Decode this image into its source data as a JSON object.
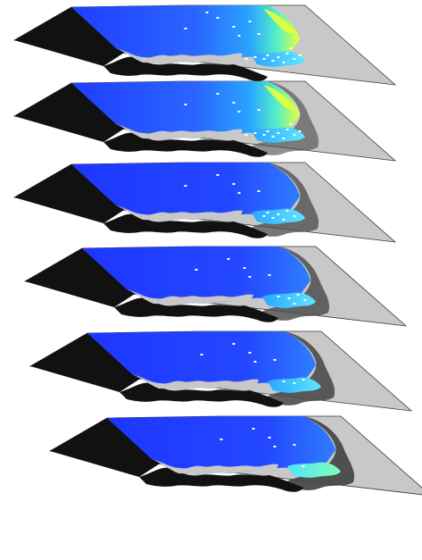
{
  "figure": {
    "description_visible_text": "",
    "layer_count": 6,
    "colors": {
      "land_gray": "#c8c8c8",
      "black_region": "#111111",
      "dark_gray_mask": "#4a4a4a",
      "deep_blue": "#1f3dff",
      "mid_blue": "#2a66ff",
      "cyan": "#3fd0ff",
      "yellow": "#e9ff3a",
      "sensor_white": "#ffffff"
    },
    "layers": [
      {
        "id": "layer-1",
        "has_hotspot": true,
        "mask_level": 0.0,
        "sensors": 18
      },
      {
        "id": "layer-2",
        "has_hotspot": true,
        "mask_level": 0.15,
        "sensors": 16
      },
      {
        "id": "layer-3",
        "has_hotspot": false,
        "mask_level": 0.45,
        "sensors": 12
      },
      {
        "id": "layer-4",
        "has_hotspot": false,
        "mask_level": 0.6,
        "sensors": 10
      },
      {
        "id": "layer-5",
        "has_hotspot": false,
        "mask_level": 0.75,
        "sensors": 8
      },
      {
        "id": "layer-6",
        "has_hotspot": false,
        "mask_level": 0.9,
        "sensors": 6
      }
    ]
  }
}
